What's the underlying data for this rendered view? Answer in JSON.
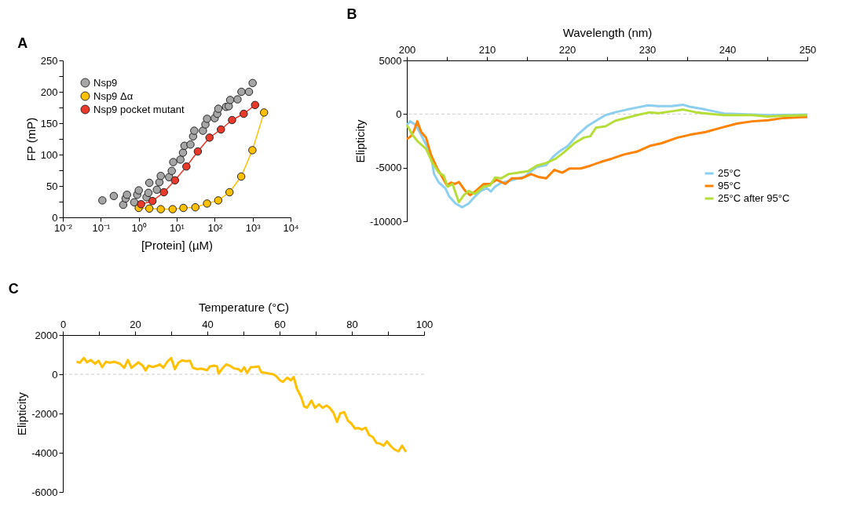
{
  "chart_data": [
    {
      "type": "scatter",
      "title": "A",
      "xlabel": "[Protein] (µM)",
      "ylabel": "FP (mP)",
      "log": "x",
      "marker": "circle",
      "legend": "top left",
      "grid": false,
      "xlim": [
        0.01,
        10000
      ],
      "xticks": [
        {
          "value": 0.01,
          "label": "10⁻²"
        },
        {
          "value": 0.1,
          "label": "10⁻¹"
        },
        {
          "value": 1,
          "label": "10⁰"
        },
        {
          "value": 10,
          "label": "10¹"
        },
        {
          "value": 100,
          "label": "10²"
        },
        {
          "value": 1000,
          "label": "10³"
        },
        {
          "value": 10000,
          "label": "10⁴"
        }
      ],
      "ylim": [
        0,
        250
      ],
      "yticks": [
        0,
        {
          "value": 25,
          "label": null
        },
        50,
        {
          "value": 75,
          "label": null
        },
        100,
        {
          "value": 125,
          "label": null
        },
        150,
        {
          "value": 175,
          "label": null
        },
        200,
        {
          "value": 225,
          "label": null
        },
        250
      ],
      "series": [
        {
          "name": "Nsp9",
          "type": "scatter",
          "color": "#a6a6a6",
          "x": [
            0.11,
            0.22,
            0.39,
            0.45,
            0.49,
            0.76,
            0.91,
            1.0,
            1.6,
            1.8,
            1.9,
            3.0,
            3.5,
            3.8,
            6.3,
            7.4,
            8.1,
            12.5,
            14.6,
            16,
            23,
            27,
            29,
            49,
            57,
            63,
            100,
            117,
            125,
            199,
            235,
            256,
            400,
            508,
            800,
            1000
          ],
          "values": [
            27,
            34,
            20,
            30,
            36,
            24,
            36,
            43,
            32,
            39,
            55,
            44,
            56,
            66,
            64,
            74,
            88,
            92,
            103,
            114,
            116,
            129,
            138,
            138,
            148,
            157,
            158,
            165,
            173,
            176,
            177,
            187,
            188,
            200,
            200,
            214
          ]
        },
        {
          "name": "Nsp9 Δα",
          "type": "line",
          "color": "#ffc000",
          "x": [
            1.0,
            1.9,
            3.8,
            7.8,
            15,
            31,
            63,
            124,
            246,
            500,
            986,
            2000
          ],
          "values": [
            15,
            14,
            13,
            13,
            15,
            16,
            22,
            27,
            40,
            65,
            107,
            167
          ]
        },
        {
          "name": "Nsp9 pocket mutant",
          "type": "line",
          "color": "#e8392a",
          "x": [
            1.15,
            2.3,
            4.6,
            9.0,
            18,
            36,
            73,
            146,
            287,
            582,
            1160
          ],
          "values": [
            21,
            26,
            40,
            59,
            81,
            105,
            127,
            140,
            155,
            165,
            179
          ]
        }
      ]
    },
    {
      "type": "line",
      "title": "B",
      "xlabel": "Wavelength (nm)",
      "ylabel": "Elipticity",
      "marker": "none",
      "line_style": "solid",
      "legend": "bottom right",
      "grid": false,
      "xlim": [
        200,
        250
      ],
      "xticks": [
        200,
        {
          "value": 205,
          "label": null
        },
        210,
        {
          "value": 215,
          "label": null
        },
        220,
        {
          "value": 225,
          "label": null
        },
        230,
        {
          "value": 235,
          "label": null
        },
        240,
        {
          "value": 245,
          "label": null
        },
        250
      ],
      "ylim": [
        -10000,
        5000
      ],
      "yticks": [
        -10000,
        -5000,
        0,
        5000
      ],
      "ref_lines": [
        {
          "axis": "y",
          "value": 0,
          "color": "#cccccc",
          "line_style": "dashed"
        }
      ],
      "series": [
        {
          "name": "25°C",
          "color": "#8ccfef",
          "x": [
            200,
            200.4,
            201.1,
            201.6,
            202.4,
            203.0,
            203.4,
            204.0,
            204.8,
            205.3,
            206.1,
            206.9,
            207.7,
            208.5,
            209.2,
            210.0,
            210.5,
            211.0,
            211.8,
            212.7,
            213.9,
            214.7,
            215.5,
            216.2,
            217.4,
            218.2,
            219.0,
            220.1,
            221.3,
            222.5,
            223.6,
            224.8,
            226.0,
            227.5,
            228.7,
            230.1,
            231.4,
            233.0,
            234.5,
            235.3,
            237.3,
            239.6,
            241.2,
            245.1,
            250
          ],
          "values": [
            -1020,
            -680,
            -1020,
            -1680,
            -2850,
            -3770,
            -5600,
            -6390,
            -6910,
            -7700,
            -8350,
            -8690,
            -8350,
            -7700,
            -7170,
            -6910,
            -7230,
            -6780,
            -6390,
            -6260,
            -6000,
            -5860,
            -5340,
            -4950,
            -4760,
            -4030,
            -3510,
            -2980,
            -1940,
            -1150,
            -630,
            -100,
            160,
            420,
            600,
            810,
            730,
            730,
            860,
            680,
            420,
            50,
            0,
            -100,
            -50
          ]
        },
        {
          "name": "95°C",
          "color": "#ff8200",
          "x": [
            200,
            200.5,
            200.9,
            201.3,
            201.8,
            202.4,
            203.0,
            203.8,
            204.6,
            205.0,
            205.5,
            206.0,
            206.5,
            207.3,
            207.9,
            208.6,
            209.6,
            210.4,
            211.2,
            212.3,
            213.1,
            214.3,
            215.5,
            216.4,
            217.4,
            218.4,
            219.4,
            220.3,
            221.7,
            222.9,
            224.4,
            225.6,
            227.1,
            228.7,
            230.3,
            231.8,
            233.8,
            235.3,
            237.3,
            239.2,
            241.2,
            243.1,
            245.1,
            247.0,
            250
          ],
          "values": [
            -2330,
            -2070,
            -1540,
            -680,
            -1680,
            -2200,
            -3770,
            -5080,
            -6130,
            -6650,
            -6390,
            -6520,
            -6340,
            -7170,
            -7570,
            -7170,
            -6520,
            -6520,
            -6130,
            -6520,
            -6000,
            -6000,
            -5600,
            -5860,
            -6000,
            -5210,
            -5470,
            -5080,
            -5080,
            -4820,
            -4420,
            -4160,
            -3770,
            -3510,
            -2980,
            -2720,
            -2200,
            -1940,
            -1680,
            -1280,
            -890,
            -680,
            -580,
            -370,
            -260
          ]
        },
        {
          "name": "25°C after 95°C",
          "color": "#b5de3a",
          "x": [
            200,
            200.7,
            201.4,
            202.4,
            203.2,
            204.0,
            204.6,
            205.1,
            205.7,
            206.5,
            207.1,
            207.7,
            208.5,
            209.6,
            210.4,
            211.0,
            211.8,
            212.7,
            213.9,
            215.1,
            216.2,
            217.4,
            218.6,
            219.7,
            220.9,
            222.1,
            222.9,
            223.6,
            224.8,
            226.0,
            227.1,
            228.7,
            230.3,
            231.4,
            233.4,
            234.5,
            236.1,
            237.7,
            239.6,
            243.1,
            245.1,
            247.0,
            250
          ],
          "values": [
            -1020,
            -1940,
            -2590,
            -3250,
            -4560,
            -5470,
            -5730,
            -6780,
            -6520,
            -8220,
            -7570,
            -7170,
            -7430,
            -6780,
            -6650,
            -5920,
            -6000,
            -5600,
            -5470,
            -5340,
            -4820,
            -4560,
            -4160,
            -3510,
            -2720,
            -2200,
            -2070,
            -1280,
            -1150,
            -630,
            -420,
            -100,
            160,
            80,
            290,
            420,
            160,
            30,
            -100,
            -100,
            -240,
            -160,
            -100
          ]
        }
      ]
    },
    {
      "type": "line",
      "title": "C",
      "xlabel": "Temperature (°C)",
      "ylabel": "Elipticity",
      "marker": "none",
      "line_style": "solid",
      "grid": false,
      "xlim": [
        0,
        100
      ],
      "xticks": [
        0,
        {
          "value": 10,
          "label": null
        },
        20,
        {
          "value": 30,
          "label": null
        },
        40,
        {
          "value": 50,
          "label": null
        },
        60,
        {
          "value": 70,
          "label": null
        },
        80,
        {
          "value": 90,
          "label": null
        },
        100
      ],
      "ylim": [
        -6000,
        2000
      ],
      "yticks": [
        -6000,
        -4000,
        -2000,
        0,
        2000
      ],
      "ref_lines": [
        {
          "axis": "y",
          "value": 0,
          "color": "#cccccc",
          "line_style": "dashed"
        }
      ],
      "series": [
        {
          "color": "#ffc000",
          "x": [
            3.8,
            4.7,
            5.8,
            6.7,
            7.7,
            8.9,
            9.9,
            10.9,
            11.9,
            13.0,
            14.2,
            15.8,
            17.0,
            18.0,
            19.0,
            20.2,
            20.9,
            22.1,
            22.9,
            23.7,
            24.9,
            26.1,
            26.9,
            27.8,
            28.9,
            30.0,
            31.0,
            32.0,
            33.0,
            34.0,
            35.2,
            36.0,
            37.2,
            38.3,
            39.9,
            40.7,
            41.9,
            42.7,
            43.1,
            44.3,
            45.2,
            46.2,
            47.4,
            48.6,
            49.4,
            50.2,
            51.0,
            52.0,
            53.0,
            54.2,
            54.9,
            56.1,
            57.3,
            58.1,
            59.1,
            60.1,
            60.9,
            62.1,
            63.1,
            63.9,
            64.8,
            66.0,
            66.8,
            67.6,
            68.8,
            69.8,
            70.9,
            71.9,
            73.0,
            73.9,
            74.9,
            75.9,
            76.8,
            77.9,
            78.9,
            79.8,
            80.9,
            81.8,
            82.8,
            83.8,
            84.8,
            85.8,
            86.8,
            87.7,
            88.8,
            89.7,
            90.8,
            91.7,
            92.9,
            93.9,
            95.0
          ],
          "values": [
            640,
            590,
            830,
            610,
            730,
            540,
            690,
            360,
            640,
            590,
            640,
            540,
            330,
            730,
            330,
            500,
            610,
            440,
            190,
            440,
            370,
            440,
            500,
            330,
            640,
            830,
            260,
            590,
            710,
            670,
            690,
            330,
            260,
            290,
            210,
            400,
            440,
            400,
            40,
            330,
            500,
            440,
            300,
            260,
            140,
            360,
            70,
            360,
            370,
            400,
            110,
            70,
            30,
            10,
            -100,
            -310,
            -390,
            -170,
            -310,
            -140,
            -740,
            -1170,
            -1640,
            -1700,
            -1340,
            -1710,
            -1530,
            -1710,
            -1590,
            -1710,
            -1960,
            -2430,
            -1990,
            -1930,
            -2360,
            -2500,
            -2770,
            -2740,
            -2820,
            -2720,
            -3100,
            -3200,
            -3500,
            -3530,
            -3640,
            -3420,
            -3670,
            -3820,
            -3930,
            -3640,
            -3960
          ]
        }
      ]
    }
  ]
}
